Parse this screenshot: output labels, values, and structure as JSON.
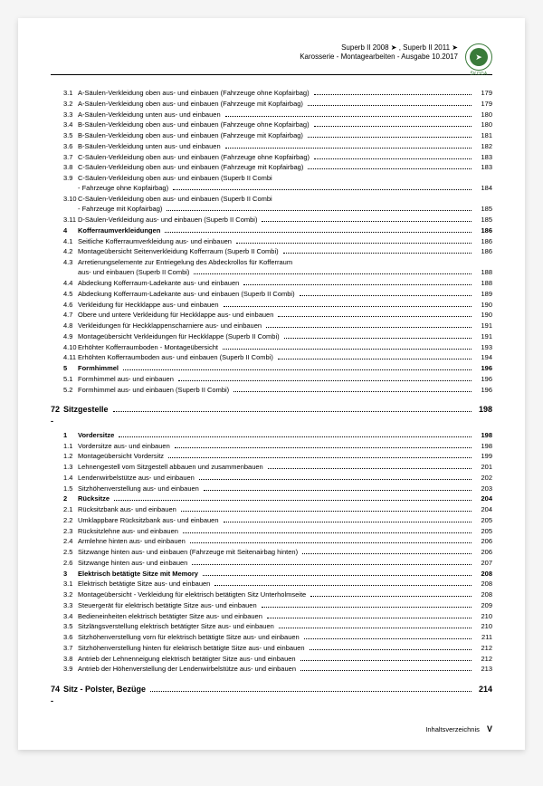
{
  "header": {
    "line1": "Superb II 2008 ➤ , Superb II 2011 ➤",
    "line2": "Karosserie - Montagearbeiten - Ausgabe 10.2017",
    "brand": "ŠKODA"
  },
  "footer": {
    "label": "Inhaltsverzeichnis",
    "page": "V"
  },
  "toc": [
    {
      "n": "3.1",
      "t": "A-Säulen-Verkleidung oben aus- und einbauen (Fahrzeuge ohne Kopfairbag)",
      "p": "179",
      "lvl": 2
    },
    {
      "n": "3.2",
      "t": "A-Säulen-Verkleidung oben aus- und einbauen (Fahrzeuge mit Kopfairbag)",
      "p": "179",
      "lvl": 2
    },
    {
      "n": "3.3",
      "t": "A-Säulen-Verkleidung unten aus- und einbauen",
      "p": "180",
      "lvl": 2
    },
    {
      "n": "3.4",
      "t": "B-Säulen-Verkleidung oben aus- und einbauen (Fahrzeuge ohne Kopfairbag)",
      "p": "180",
      "lvl": 2
    },
    {
      "n": "3.5",
      "t": "B-Säulen-Verkleidung oben aus- und einbauen (Fahrzeuge mit Kopfairbag)",
      "p": "181",
      "lvl": 2
    },
    {
      "n": "3.6",
      "t": "B-Säulen-Verkleidung unten aus- und einbauen",
      "p": "182",
      "lvl": 2
    },
    {
      "n": "3.7",
      "t": "C-Säulen-Verkleidung oben aus- und einbauen (Fahrzeuge ohne Kopfairbag)",
      "p": "183",
      "lvl": 2
    },
    {
      "n": "3.8",
      "t": "C-Säulen-Verkleidung oben aus- und einbauen (Fahrzeuge mit Kopfairbag)",
      "p": "183",
      "lvl": 2
    },
    {
      "n": "3.9",
      "t": "C-Säulen-Verkleidung oben aus- und einbauen (Superb II Combi - Fahrzeuge ohne Kopfairbag)",
      "p": "184",
      "lvl": 2,
      "ml": true
    },
    {
      "n": "3.10",
      "t": "C-Säulen-Verkleidung oben aus- und einbauen (Superb II Combi - Fahrzeuge mit Kopfairbag)",
      "p": "185",
      "lvl": 2,
      "ml": true
    },
    {
      "n": "3.11",
      "t": "D-Säulen-Verkleidung aus- und einbauen (Superb II Combi)",
      "p": "185",
      "lvl": 2
    },
    {
      "n": "4",
      "t": "Kofferraumverkleidungen",
      "p": "186",
      "lvl": 1,
      "b": true
    },
    {
      "n": "4.1",
      "t": "Seitliche Kofferraumverkleidung aus- und einbauen",
      "p": "186",
      "lvl": 2
    },
    {
      "n": "4.2",
      "t": "Montageübersicht Seitenverkleidung Kofferraum (Superb II Combi)",
      "p": "186",
      "lvl": 2
    },
    {
      "n": "4.3",
      "t": "Arretierungselemente zur Entriegelung des Abdeckrollos für Kofferraum aus- und einbauen (Superb II Combi)",
      "p": "188",
      "lvl": 2,
      "ml": true
    },
    {
      "n": "4.4",
      "t": "Abdeckung Kofferraum-Ladekante aus- und einbauen",
      "p": "188",
      "lvl": 2
    },
    {
      "n": "4.5",
      "t": "Abdeckung Kofferraum-Ladekante aus- und einbauen (Superb II Combi)",
      "p": "189",
      "lvl": 2
    },
    {
      "n": "4.6",
      "t": "Verkleidung für Heckklappe aus- und einbauen",
      "p": "190",
      "lvl": 2
    },
    {
      "n": "4.7",
      "t": "Obere und untere Verkleidung für Heckklappe aus- und einbauen",
      "p": "190",
      "lvl": 2
    },
    {
      "n": "4.8",
      "t": "Verkleidungen für Heckklappenscharniere aus- und einbauen",
      "p": "191",
      "lvl": 2
    },
    {
      "n": "4.9",
      "t": "Montageübersicht Verkleidungen für Heckklappe (Superb II Combi)",
      "p": "191",
      "lvl": 2
    },
    {
      "n": "4.10",
      "t": "Erhöhter Kofferraumboden - Montageübersicht",
      "p": "193",
      "lvl": 2
    },
    {
      "n": "4.11",
      "t": "Erhöhten Kofferraumboden aus- und einbauen (Superb II Combi)",
      "p": "194",
      "lvl": 2
    },
    {
      "n": "5",
      "t": "Formhimmel",
      "p": "196",
      "lvl": 1,
      "b": true
    },
    {
      "n": "5.1",
      "t": "Formhimmel aus- und einbauen",
      "p": "196",
      "lvl": 2
    },
    {
      "n": "5.2",
      "t": "Formhimmel aus- und einbauen (Superb II Combi)",
      "p": "196",
      "lvl": 2
    },
    {
      "n": "72 -",
      "t": "Sitzgestelle",
      "p": "198",
      "lvl": 0,
      "b": true,
      "sec": true
    },
    {
      "n": "1",
      "t": "Vordersitze",
      "p": "198",
      "lvl": 1,
      "b": true
    },
    {
      "n": "1.1",
      "t": "Vordersitze aus- und einbauen",
      "p": "198",
      "lvl": 2
    },
    {
      "n": "1.2",
      "t": "Montageübersicht Vordersitz",
      "p": "199",
      "lvl": 2
    },
    {
      "n": "1.3",
      "t": "Lehnengestell vom Sitzgestell abbauen und zusammenbauen",
      "p": "201",
      "lvl": 2
    },
    {
      "n": "1.4",
      "t": "Lendenwirbelstütze aus- und einbauen",
      "p": "202",
      "lvl": 2
    },
    {
      "n": "1.5",
      "t": "Sitzhöhenverstellung aus- und einbauen",
      "p": "203",
      "lvl": 2
    },
    {
      "n": "2",
      "t": "Rücksitze",
      "p": "204",
      "lvl": 1,
      "b": true
    },
    {
      "n": "2.1",
      "t": "Rücksitzbank aus- und einbauen",
      "p": "204",
      "lvl": 2
    },
    {
      "n": "2.2",
      "t": "Umklappbare Rücksitzbank aus- und einbauen",
      "p": "205",
      "lvl": 2
    },
    {
      "n": "2.3",
      "t": "Rücksitzlehne aus- und einbauen",
      "p": "205",
      "lvl": 2
    },
    {
      "n": "2.4",
      "t": "Armlehne hinten aus- und einbauen",
      "p": "206",
      "lvl": 2
    },
    {
      "n": "2.5",
      "t": "Sitzwange hinten aus- und einbauen (Fahrzeuge mit Seitenairbag hinten)",
      "p": "206",
      "lvl": 2
    },
    {
      "n": "2.6",
      "t": "Sitzwange hinten aus- und einbauen",
      "p": "207",
      "lvl": 2
    },
    {
      "n": "3",
      "t": "Elektrisch betätigte Sitze mit Memory",
      "p": "208",
      "lvl": 1,
      "b": true
    },
    {
      "n": "3.1",
      "t": "Elektrisch betätigte Sitze aus- und einbauen",
      "p": "208",
      "lvl": 2
    },
    {
      "n": "3.2",
      "t": "Montageübersicht - Verkleidung für elektrisch betätigten Sitz Unterholmseite",
      "p": "208",
      "lvl": 2
    },
    {
      "n": "3.3",
      "t": "Steuergerät für elektrisch betätigte Sitze aus- und einbauen",
      "p": "209",
      "lvl": 2
    },
    {
      "n": "3.4",
      "t": "Bedieneinheiten elektrisch betätigter Sitze aus- und einbauen",
      "p": "210",
      "lvl": 2
    },
    {
      "n": "3.5",
      "t": "Sitzlängsverstellung elektrisch betätigter Sitze aus- und einbauen",
      "p": "210",
      "lvl": 2
    },
    {
      "n": "3.6",
      "t": "Sitzhöhenverstellung vorn für elektrisch betätigte Sitze aus- und einbauen",
      "p": "211",
      "lvl": 2
    },
    {
      "n": "3.7",
      "t": "Sitzhöhenverstellung hinten für elektrisch betätigte Sitze aus- und einbauen",
      "p": "212",
      "lvl": 2
    },
    {
      "n": "3.8",
      "t": "Antrieb der Lehnenneigung elektrisch betätigter Sitze aus- und einbauen",
      "p": "212",
      "lvl": 2
    },
    {
      "n": "3.9",
      "t": "Antrieb der Höhenverstellung der Lendenwirbelstütze aus- und einbauen",
      "p": "213",
      "lvl": 2
    },
    {
      "n": "74 -",
      "t": "Sitz - Polster, Bezüge",
      "p": "214",
      "lvl": 0,
      "b": true,
      "sec": true
    }
  ]
}
